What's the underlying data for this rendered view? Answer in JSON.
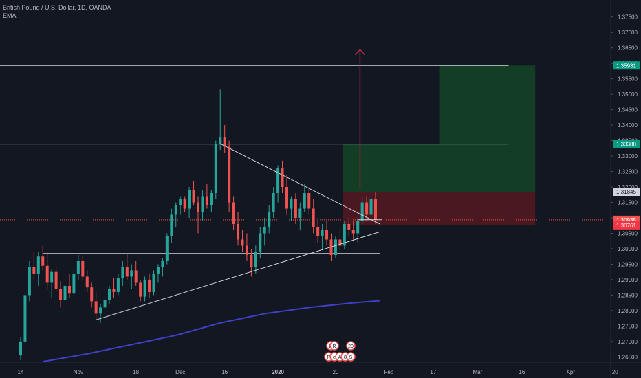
{
  "legend": {
    "symbol": "British Pound / U.S. Dollar, 1D, OANDA",
    "indicator": "EMA"
  },
  "colors": {
    "background": "#131722",
    "up_candle": "#26a69a",
    "down_candle": "#ef5350",
    "ema": "#3f3fc8",
    "trendline": "#d1d4dc",
    "target_arrow": "#9b2c43",
    "profit_zone": "#133d25",
    "loss_zone": "#4a1821",
    "current_price_line": "#ef5350",
    "axis_text": "#b2b5be"
  },
  "chart_data": {
    "type": "candlestick",
    "ylim": [
      1.2633,
      1.3805
    ],
    "y_ticks": [
      1.265,
      1.27,
      1.275,
      1.28,
      1.285,
      1.29,
      1.295,
      1.3,
      1.305,
      1.31,
      1.315,
      1.32,
      1.325,
      1.33,
      1.335,
      1.34,
      1.345,
      1.35,
      1.355,
      1.36,
      1.365,
      1.37,
      1.375
    ],
    "y_tick_labels": [
      "1.26500",
      "1.27000",
      "1.27500",
      "1.28000",
      "1.28500",
      "1.29000",
      "1.29500",
      "1.30000",
      "1.30500",
      "1.31000",
      "1.31500",
      "1.32000",
      "1.32500",
      "1.33000",
      "1.33500",
      "1.34000",
      "1.34500",
      "1.35000",
      "1.35500",
      "1.36000",
      "1.36500",
      "1.37000",
      "1.37500"
    ],
    "x_tick_labels": [
      "14",
      "Nov",
      "18",
      "Dec",
      "16",
      "2020",
      "20",
      "Feb",
      "17",
      "Mar",
      "16",
      "Apr",
      "20"
    ],
    "x_tick_bar_index": [
      0,
      13,
      26,
      36,
      46,
      58,
      71,
      83,
      93,
      103,
      113,
      124,
      134
    ],
    "price_labels": [
      {
        "text": "1.35931",
        "value": 1.35931,
        "color": "#089981"
      },
      {
        "text": "1.33388",
        "value": 1.33388,
        "color": "#089981"
      },
      {
        "text": "1.31844",
        "value": 1.31844,
        "color": "#4a4e59"
      },
      {
        "text": "1.31845",
        "value": 1.31845,
        "color": "#d1d4dc"
      },
      {
        "text": "1.30935",
        "value": 1.30935,
        "color": "#ef5350"
      },
      {
        "text": "1.30760",
        "value": 1.3076,
        "color": "#f23645"
      },
      {
        "text": "1.30761",
        "value": 1.30761,
        "color": "#f23645"
      }
    ],
    "candles_ohlc": [
      [
        1.2655,
        1.2715,
        1.264,
        1.27
      ],
      [
        1.27,
        1.286,
        1.269,
        1.285
      ],
      [
        1.285,
        1.296,
        1.283,
        1.294
      ],
      [
        1.294,
        1.299,
        1.29,
        1.292
      ],
      [
        1.292,
        1.299,
        1.288,
        1.2975
      ],
      [
        1.2975,
        1.301,
        1.293,
        1.2945
      ],
      [
        1.2945,
        1.299,
        1.287,
        1.289
      ],
      [
        1.289,
        1.2935,
        1.284,
        1.2925
      ],
      [
        1.2925,
        1.294,
        1.286,
        1.287
      ],
      [
        1.287,
        1.2895,
        1.281,
        1.2835
      ],
      [
        1.2835,
        1.289,
        1.282,
        1.288
      ],
      [
        1.288,
        1.292,
        1.284,
        1.2855
      ],
      [
        1.2855,
        1.2935,
        1.285,
        1.292
      ],
      [
        1.292,
        1.298,
        1.29,
        1.296
      ],
      [
        1.296,
        1.2975,
        1.29,
        1.291
      ],
      [
        1.291,
        1.293,
        1.286,
        1.2875
      ],
      [
        1.2875,
        1.289,
        1.281,
        1.283
      ],
      [
        1.283,
        1.286,
        1.277,
        1.279
      ],
      [
        1.279,
        1.282,
        1.276,
        1.281
      ],
      [
        1.281,
        1.2845,
        1.279,
        1.2835
      ],
      [
        1.2835,
        1.288,
        1.282,
        1.287
      ],
      [
        1.287,
        1.2905,
        1.284,
        1.286
      ],
      [
        1.286,
        1.292,
        1.285,
        1.2905
      ],
      [
        1.2905,
        1.296,
        1.288,
        1.294
      ],
      [
        1.294,
        1.2985,
        1.29,
        1.291
      ],
      [
        1.291,
        1.295,
        1.287,
        1.293
      ],
      [
        1.293,
        1.296,
        1.288,
        1.289
      ],
      [
        1.289,
        1.29,
        1.283,
        1.2845
      ],
      [
        1.2845,
        1.291,
        1.283,
        1.29
      ],
      [
        1.29,
        1.292,
        1.284,
        1.286
      ],
      [
        1.286,
        1.293,
        1.285,
        1.292
      ],
      [
        1.292,
        1.295,
        1.289,
        1.294
      ],
      [
        1.294,
        1.297,
        1.291,
        1.296
      ],
      [
        1.296,
        1.305,
        1.295,
        1.304
      ],
      [
        1.304,
        1.313,
        1.302,
        1.311
      ],
      [
        1.311,
        1.315,
        1.307,
        1.314
      ],
      [
        1.314,
        1.317,
        1.311,
        1.316
      ],
      [
        1.316,
        1.317,
        1.312,
        1.313
      ],
      [
        1.313,
        1.32,
        1.31,
        1.319
      ],
      [
        1.319,
        1.322,
        1.314,
        1.315
      ],
      [
        1.315,
        1.317,
        1.305,
        1.312
      ],
      [
        1.312,
        1.319,
        1.309,
        1.317
      ],
      [
        1.317,
        1.321,
        1.313,
        1.314
      ],
      [
        1.314,
        1.319,
        1.312,
        1.318
      ],
      [
        1.318,
        1.335,
        1.316,
        1.334
      ],
      [
        1.334,
        1.3515,
        1.332,
        1.336
      ],
      [
        1.336,
        1.34,
        1.331,
        1.333
      ],
      [
        1.333,
        1.335,
        1.312,
        1.315
      ],
      [
        1.315,
        1.317,
        1.306,
        1.308
      ],
      [
        1.308,
        1.312,
        1.301,
        1.303
      ],
      [
        1.303,
        1.306,
        1.299,
        1.301
      ],
      [
        1.301,
        1.305,
        1.296,
        1.298
      ],
      [
        1.298,
        1.3,
        1.291,
        1.294
      ],
      [
        1.294,
        1.301,
        1.292,
        1.299
      ],
      [
        1.299,
        1.307,
        1.297,
        1.305
      ],
      [
        1.305,
        1.31,
        1.301,
        1.307
      ],
      [
        1.307,
        1.314,
        1.305,
        1.312
      ],
      [
        1.312,
        1.32,
        1.31,
        1.318
      ],
      [
        1.318,
        1.327,
        1.315,
        1.326
      ],
      [
        1.326,
        1.3285,
        1.318,
        1.32
      ],
      [
        1.32,
        1.324,
        1.311,
        1.313
      ],
      [
        1.313,
        1.317,
        1.309,
        1.316
      ],
      [
        1.316,
        1.318,
        1.308,
        1.31
      ],
      [
        1.31,
        1.315,
        1.306,
        1.313
      ],
      [
        1.313,
        1.321,
        1.312,
        1.318
      ],
      [
        1.318,
        1.32,
        1.311,
        1.313
      ],
      [
        1.313,
        1.316,
        1.305,
        1.307
      ],
      [
        1.307,
        1.31,
        1.302,
        1.304
      ],
      [
        1.304,
        1.308,
        1.3,
        1.306
      ],
      [
        1.306,
        1.309,
        1.301,
        1.303
      ],
      [
        1.303,
        1.305,
        1.296,
        1.298
      ],
      [
        1.298,
        1.304,
        1.297,
        1.303
      ],
      [
        1.303,
        1.306,
        1.299,
        1.301
      ],
      [
        1.301,
        1.309,
        1.3,
        1.308
      ],
      [
        1.308,
        1.31,
        1.304,
        1.306
      ],
      [
        1.306,
        1.309,
        1.303,
        1.305
      ],
      [
        1.305,
        1.31,
        1.302,
        1.309
      ],
      [
        1.309,
        1.317,
        1.308,
        1.315
      ],
      [
        1.315,
        1.317,
        1.309,
        1.311
      ],
      [
        1.311,
        1.318,
        1.31,
        1.316
      ],
      [
        1.316,
        1.3185,
        1.308,
        1.3094
      ]
    ],
    "ema_values": [
      [
        5,
        1.2635
      ],
      [
        15,
        1.266
      ],
      [
        25,
        1.269
      ],
      [
        35,
        1.272
      ],
      [
        45,
        1.276
      ],
      [
        55,
        1.279
      ],
      [
        65,
        1.281
      ],
      [
        75,
        1.2825
      ],
      [
        81,
        1.2832
      ]
    ],
    "horizontal_levels": [
      1.35931,
      1.33388
    ],
    "triangle_lines": {
      "upper": [
        [
          45,
          1.334
        ],
        [
          81,
          1.308
        ]
      ],
      "lower": [
        [
          17,
          1.277
        ],
        [
          81,
          1.3055
        ]
      ],
      "base": [
        [
          5,
          1.2985
        ],
        [
          81,
          1.2985
        ]
      ]
    }
  },
  "toolbar_badges": [
    "D",
    "20",
    "P",
    "e",
    "A",
    "8",
    "S",
    "R"
  ]
}
